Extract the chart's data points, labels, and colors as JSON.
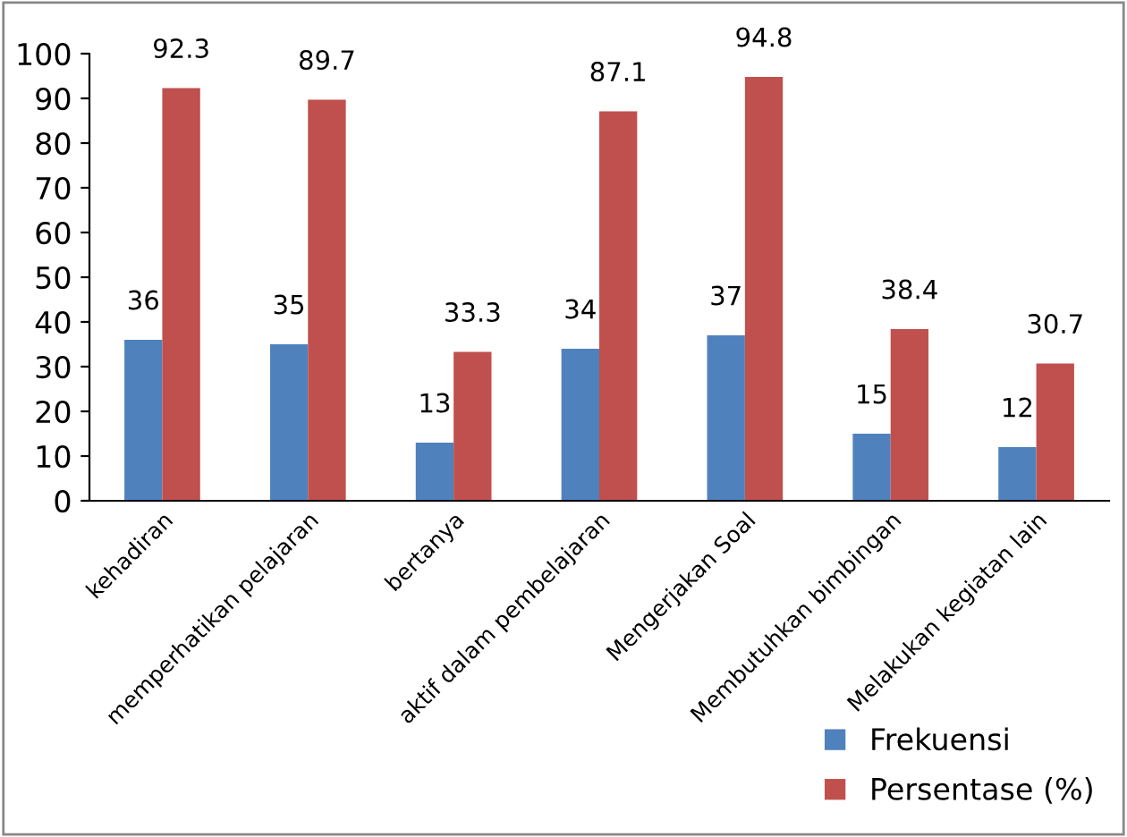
{
  "chart_data": {
    "type": "bar",
    "categories": [
      "kehadiran",
      "memperhatikan pelajaran",
      "bertanya",
      "aktif dalam pembelajaran",
      "Mengerjakan Soal",
      "Membutuhkan bimbingan",
      "Melakukan kegiatan lain"
    ],
    "series": [
      {
        "name": "Frekuensi",
        "color": "#4f81bd",
        "values": [
          36,
          35,
          13,
          34,
          37,
          15,
          12
        ]
      },
      {
        "name": "Persentase (%)",
        "color": "#c0504d",
        "values": [
          92.3,
          89.7,
          33.3,
          87.1,
          94.8,
          38.4,
          30.7
        ]
      }
    ],
    "ylim": [
      0,
      100
    ],
    "yticks": [
      0,
      10,
      20,
      30,
      40,
      50,
      60,
      70,
      80,
      90,
      100
    ],
    "grid": false,
    "legend": "bottom right",
    "data_labels": true
  }
}
